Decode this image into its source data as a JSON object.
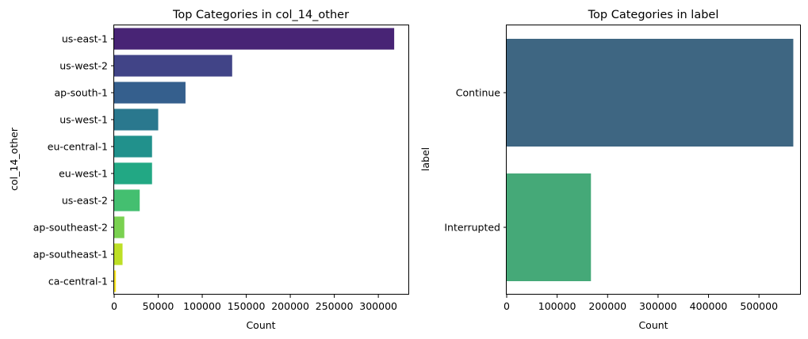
{
  "chart_data": [
    {
      "type": "bar",
      "orientation": "horizontal",
      "title": "Top Categories in col_14_other",
      "xlabel": "Count",
      "ylabel": "col_14_other",
      "xlim": [
        0,
        335000
      ],
      "xticks": [
        0,
        50000,
        100000,
        150000,
        200000,
        250000,
        300000
      ],
      "categories": [
        "us-east-1",
        "us-west-2",
        "ap-south-1",
        "us-west-1",
        "eu-central-1",
        "eu-west-1",
        "us-east-2",
        "ap-southeast-2",
        "ap-southeast-1",
        "ca-central-1"
      ],
      "values": [
        318000,
        134000,
        81000,
        50000,
        43000,
        43000,
        29000,
        11500,
        9500,
        2000
      ],
      "colors": [
        "#482475",
        "#414487",
        "#355f8d",
        "#2a788e",
        "#21918c",
        "#22a884",
        "#44bf70",
        "#7ad151",
        "#bddf26",
        "#fde725"
      ]
    },
    {
      "type": "bar",
      "orientation": "horizontal",
      "title": "Top Categories in label",
      "xlabel": "Count",
      "ylabel": "label",
      "xlim": [
        0,
        583000
      ],
      "xticks": [
        0,
        100000,
        200000,
        300000,
        400000,
        500000
      ],
      "categories": [
        "Continue",
        "Interrupted"
      ],
      "values": [
        568000,
        167000
      ],
      "colors": [
        "#3e6682",
        "#45a978"
      ]
    }
  ]
}
